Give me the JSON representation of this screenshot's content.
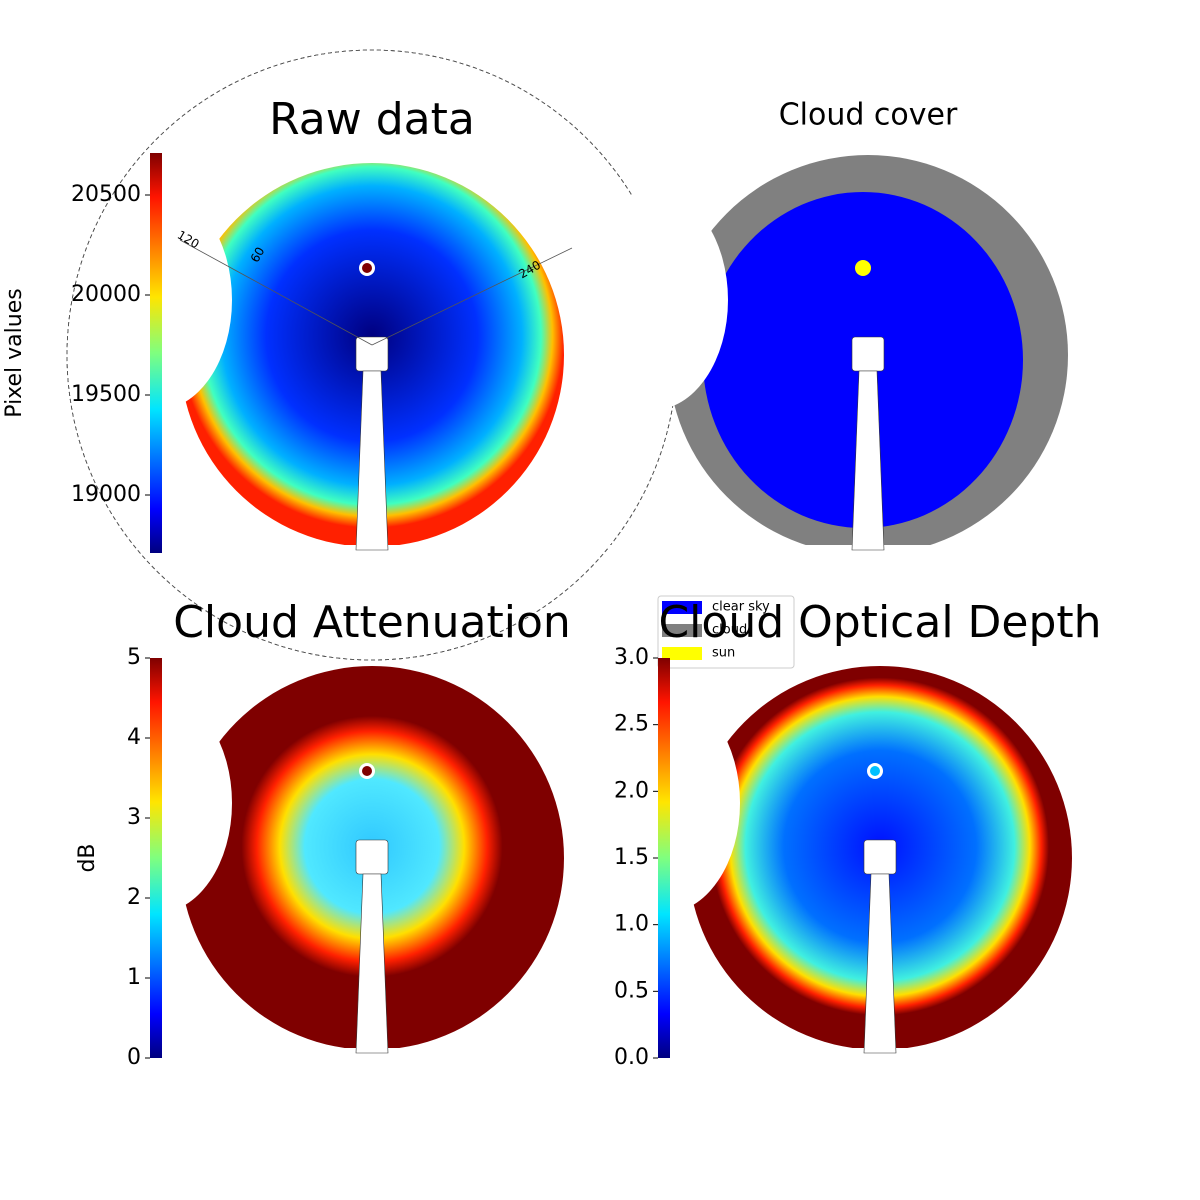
{
  "chart_data": [
    {
      "type": "image",
      "title": "Raw data",
      "colorbar": {
        "label": "Pixel values",
        "lim": [
          18710,
          20710
        ],
        "ticks": [
          19000,
          19500,
          20000,
          20500
        ]
      },
      "annotations": [
        "120",
        "60",
        "240"
      ]
    },
    {
      "type": "image",
      "title": "Cloud cover",
      "legend": [
        {
          "name": "clear sky",
          "color": "#0000ff"
        },
        {
          "name": "cloud",
          "color": "#808080"
        },
        {
          "name": "sun",
          "color": "#ffff00"
        }
      ]
    },
    {
      "type": "image",
      "title": "Cloud Attenuation",
      "colorbar": {
        "label": "dB",
        "lim": [
          0,
          5
        ],
        "ticks": [
          0,
          1,
          2,
          3,
          4,
          5
        ]
      }
    },
    {
      "type": "image",
      "title": "Cloud Optical Depth",
      "colorbar": {
        "lim": [
          0,
          3
        ],
        "ticks": [
          {
            "value": 0,
            "label": "0.0"
          },
          0.5,
          {
            "value": 1,
            "label": "1.0"
          },
          1.5,
          {
            "value": 2,
            "label": "2.0"
          },
          2.5,
          {
            "value": 3,
            "label": "3.0"
          }
        ]
      }
    }
  ]
}
